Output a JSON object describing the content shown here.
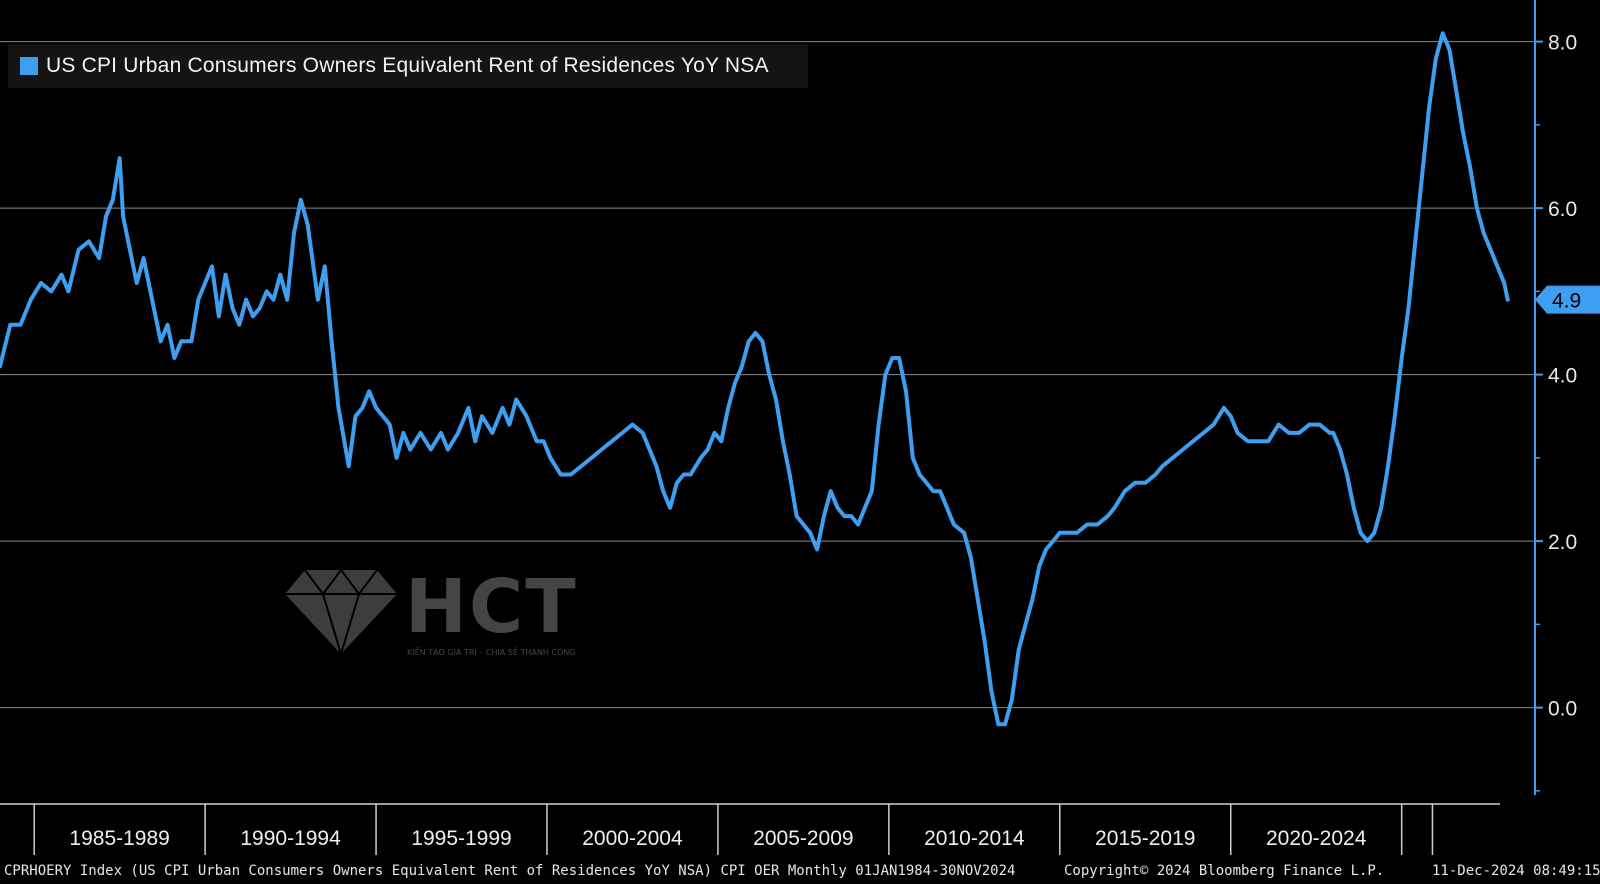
{
  "chart_data": {
    "type": "line",
    "legend": "US CPI Urban Consumers Owners Equivalent Rent of Residences YoY NSA",
    "series": [
      {
        "name": "US CPI Urban Consumers Owners Equivalent Rent of Residences YoY NSA",
        "color": "#3e9ff0",
        "points": [
          [
            1984.0,
            4.1
          ],
          [
            1984.3,
            4.6
          ],
          [
            1984.6,
            4.6
          ],
          [
            1984.9,
            4.9
          ],
          [
            1985.2,
            5.1
          ],
          [
            1985.5,
            5.0
          ],
          [
            1985.8,
            5.2
          ],
          [
            1986.0,
            5.0
          ],
          [
            1986.3,
            5.5
          ],
          [
            1986.6,
            5.6
          ],
          [
            1986.9,
            5.4
          ],
          [
            1987.1,
            5.9
          ],
          [
            1987.3,
            6.1
          ],
          [
            1987.5,
            6.6
          ],
          [
            1987.6,
            5.9
          ],
          [
            1987.8,
            5.5
          ],
          [
            1988.0,
            5.1
          ],
          [
            1988.2,
            5.4
          ],
          [
            1988.5,
            4.8
          ],
          [
            1988.7,
            4.4
          ],
          [
            1988.9,
            4.6
          ],
          [
            1989.1,
            4.2
          ],
          [
            1989.3,
            4.4
          ],
          [
            1989.6,
            4.4
          ],
          [
            1989.8,
            4.9
          ],
          [
            1990.0,
            5.1
          ],
          [
            1990.2,
            5.3
          ],
          [
            1990.4,
            4.7
          ],
          [
            1990.6,
            5.2
          ],
          [
            1990.8,
            4.8
          ],
          [
            1991.0,
            4.6
          ],
          [
            1991.2,
            4.9
          ],
          [
            1991.4,
            4.7
          ],
          [
            1991.6,
            4.8
          ],
          [
            1991.8,
            5.0
          ],
          [
            1992.0,
            4.9
          ],
          [
            1992.2,
            5.2
          ],
          [
            1992.4,
            4.9
          ],
          [
            1992.6,
            5.7
          ],
          [
            1992.8,
            6.1
          ],
          [
            1993.0,
            5.8
          ],
          [
            1993.2,
            5.2
          ],
          [
            1993.3,
            4.9
          ],
          [
            1993.5,
            5.3
          ],
          [
            1993.7,
            4.4
          ],
          [
            1993.9,
            3.6
          ],
          [
            1994.2,
            2.9
          ],
          [
            1994.4,
            3.5
          ],
          [
            1994.6,
            3.6
          ],
          [
            1994.8,
            3.8
          ],
          [
            1995.0,
            3.6
          ],
          [
            1995.2,
            3.5
          ],
          [
            1995.4,
            3.4
          ],
          [
            1995.6,
            3.0
          ],
          [
            1995.8,
            3.3
          ],
          [
            1996.0,
            3.1
          ],
          [
            1996.3,
            3.3
          ],
          [
            1996.6,
            3.1
          ],
          [
            1996.9,
            3.3
          ],
          [
            1997.1,
            3.1
          ],
          [
            1997.4,
            3.3
          ],
          [
            1997.7,
            3.6
          ],
          [
            1997.9,
            3.2
          ],
          [
            1998.1,
            3.5
          ],
          [
            1998.4,
            3.3
          ],
          [
            1998.7,
            3.6
          ],
          [
            1998.9,
            3.4
          ],
          [
            1999.1,
            3.7
          ],
          [
            1999.4,
            3.5
          ],
          [
            1999.7,
            3.2
          ],
          [
            1999.9,
            3.2
          ],
          [
            2000.1,
            3.0
          ],
          [
            2000.4,
            2.8
          ],
          [
            2000.7,
            2.8
          ],
          [
            2001.0,
            2.9
          ],
          [
            2001.3,
            3.0
          ],
          [
            2001.6,
            3.1
          ],
          [
            2001.9,
            3.2
          ],
          [
            2002.2,
            3.3
          ],
          [
            2002.5,
            3.4
          ],
          [
            2002.8,
            3.3
          ],
          [
            2003.0,
            3.1
          ],
          [
            2003.2,
            2.9
          ],
          [
            2003.4,
            2.6
          ],
          [
            2003.6,
            2.4
          ],
          [
            2003.8,
            2.7
          ],
          [
            2004.0,
            2.8
          ],
          [
            2004.2,
            2.8
          ],
          [
            2004.5,
            3.0
          ],
          [
            2004.7,
            3.1
          ],
          [
            2004.9,
            3.3
          ],
          [
            2005.1,
            3.2
          ],
          [
            2005.3,
            3.6
          ],
          [
            2005.5,
            3.9
          ],
          [
            2005.7,
            4.1
          ],
          [
            2005.9,
            4.4
          ],
          [
            2006.1,
            4.5
          ],
          [
            2006.3,
            4.4
          ],
          [
            2006.5,
            4.0
          ],
          [
            2006.7,
            3.7
          ],
          [
            2006.9,
            3.2
          ],
          [
            2007.1,
            2.8
          ],
          [
            2007.3,
            2.3
          ],
          [
            2007.5,
            2.2
          ],
          [
            2007.7,
            2.1
          ],
          [
            2007.9,
            1.9
          ],
          [
            2008.1,
            2.3
          ],
          [
            2008.3,
            2.6
          ],
          [
            2008.5,
            2.4
          ],
          [
            2008.7,
            2.3
          ],
          [
            2008.9,
            2.3
          ],
          [
            2009.1,
            2.2
          ],
          [
            2009.3,
            2.4
          ],
          [
            2009.5,
            2.6
          ],
          [
            2009.7,
            3.4
          ],
          [
            2009.9,
            4.0
          ],
          [
            2010.1,
            4.2
          ],
          [
            2010.3,
            4.2
          ],
          [
            2010.5,
            3.8
          ],
          [
            2010.7,
            3.0
          ],
          [
            2010.9,
            2.8
          ],
          [
            2011.1,
            2.7
          ],
          [
            2011.3,
            2.6
          ],
          [
            2011.5,
            2.6
          ],
          [
            2011.7,
            2.4
          ],
          [
            2011.9,
            2.2
          ],
          [
            2012.2,
            2.1
          ],
          [
            2012.4,
            1.8
          ],
          [
            2012.6,
            1.3
          ],
          [
            2012.8,
            0.8
          ],
          [
            2013.0,
            0.2
          ],
          [
            2013.2,
            -0.2
          ],
          [
            2013.4,
            -0.2
          ],
          [
            2013.6,
            0.1
          ],
          [
            2013.8,
            0.7
          ],
          [
            2014.0,
            1.0
          ],
          [
            2014.2,
            1.3
          ],
          [
            2014.4,
            1.7
          ],
          [
            2014.6,
            1.9
          ],
          [
            2014.8,
            2.0
          ],
          [
            2015.0,
            2.1
          ],
          [
            2015.2,
            2.1
          ],
          [
            2015.5,
            2.1
          ],
          [
            2015.8,
            2.2
          ],
          [
            2016.1,
            2.2
          ],
          [
            2016.4,
            2.3
          ],
          [
            2016.6,
            2.4
          ],
          [
            2016.9,
            2.6
          ],
          [
            2017.2,
            2.7
          ],
          [
            2017.5,
            2.7
          ],
          [
            2017.8,
            2.8
          ],
          [
            2018.0,
            2.9
          ],
          [
            2018.3,
            3.0
          ],
          [
            2018.6,
            3.1
          ],
          [
            2018.9,
            3.2
          ],
          [
            2019.2,
            3.3
          ],
          [
            2019.5,
            3.4
          ],
          [
            2019.8,
            3.6
          ],
          [
            2020.0,
            3.5
          ],
          [
            2020.2,
            3.3
          ],
          [
            2020.5,
            3.2
          ],
          [
            2020.8,
            3.2
          ],
          [
            2021.1,
            3.2
          ],
          [
            2021.4,
            3.4
          ],
          [
            2021.7,
            3.3
          ],
          [
            2022.0,
            3.3
          ],
          [
            2022.3,
            3.4
          ],
          [
            2022.6,
            3.4
          ],
          [
            2022.9,
            3.3
          ],
          [
            2023.0,
            3.3
          ],
          [
            2023.2,
            3.1
          ],
          [
            2023.4,
            2.8
          ],
          [
            2023.6,
            2.4
          ],
          [
            2023.8,
            2.1
          ],
          [
            2024.0,
            2.0
          ],
          [
            2024.2,
            2.1
          ],
          [
            2024.4,
            2.4
          ],
          [
            2024.6,
            2.9
          ],
          [
            2024.8,
            3.5
          ],
          [
            2025.0,
            4.2
          ],
          [
            2025.2,
            4.8
          ],
          [
            2025.4,
            5.6
          ],
          [
            2025.6,
            6.4
          ],
          [
            2025.8,
            7.2
          ],
          [
            2026.0,
            7.8
          ],
          [
            2026.2,
            8.1
          ],
          [
            2026.4,
            7.9
          ],
          [
            2026.6,
            7.4
          ],
          [
            2026.8,
            6.9
          ],
          [
            2027.0,
            6.5
          ],
          [
            2027.2,
            6.0
          ],
          [
            2027.4,
            5.7
          ],
          [
            2027.6,
            5.5
          ],
          [
            2027.8,
            5.3
          ],
          [
            2028.0,
            5.1
          ],
          [
            2028.1,
            4.9
          ]
        ]
      }
    ],
    "x_range": [
      1984.0,
      2028.9
    ],
    "y_range": [
      -1.05,
      8.5
    ],
    "y_ticks": [
      0.0,
      2.0,
      4.0,
      6.0,
      8.0
    ],
    "y_tick_labels": [
      "0.0",
      "2.0",
      "4.0",
      "6.0",
      "8.0"
    ],
    "x_boundaries": [
      1985,
      1990,
      1995,
      2000,
      2005,
      2010,
      2015,
      2020,
      2025,
      2025.9
    ],
    "x_labels": [
      {
        "label": "1985-1989",
        "x": 1987.5
      },
      {
        "label": "1990-1994",
        "x": 1992.5
      },
      {
        "label": "1995-1999",
        "x": 1997.5
      },
      {
        "label": "2000-2004",
        "x": 2002.5
      },
      {
        "label": "2005-2009",
        "x": 2007.5
      },
      {
        "label": "2010-2014",
        "x": 2012.5
      },
      {
        "label": "2015-2019",
        "x": 2017.5
      },
      {
        "label": "2020-2024",
        "x": 2022.5
      }
    ],
    "last_value": 4.9,
    "last_value_label": "4.9",
    "grid": true,
    "background": "#000000",
    "line_color": "#3e9ff0",
    "axis_color": "#3e9ff0"
  },
  "watermark": {
    "logo_text": "HCT",
    "tagline": "KIẾN TẠO GIÁ TRỊ – CHIA SẺ THÀNH CÔNG"
  },
  "footer": {
    "left": "CPRHOERY Index (US CPI Urban Consumers Owners Equivalent Rent of Residences YoY NSA) CPI OER  Monthly 01JAN1984-30NOV2024",
    "copyright": "Copyright© 2024 Bloomberg Finance L.P.",
    "timestamp": "11-Dec-2024 08:49:15"
  }
}
